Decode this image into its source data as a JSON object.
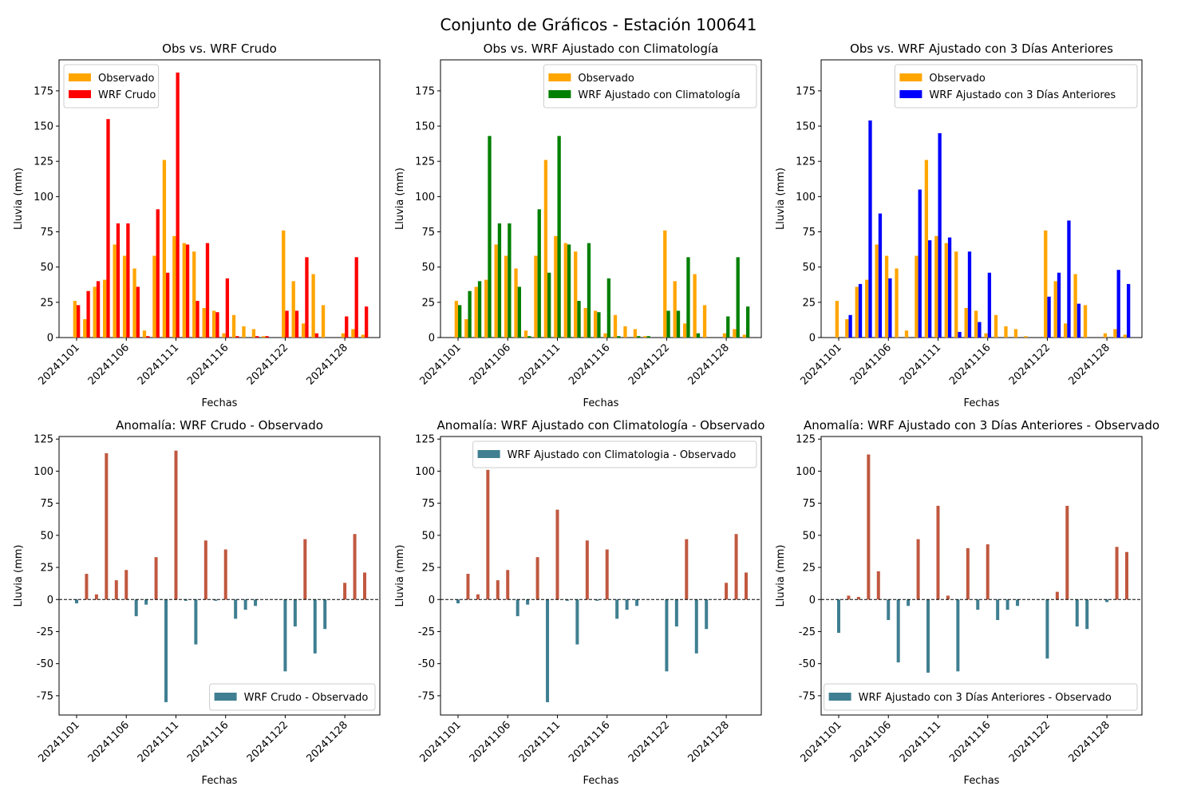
{
  "figure": {
    "title": "Conjunto de Gráficos - Estación 100641",
    "colors": {
      "observed": "#FFA500",
      "wrf_raw": "#FF0000",
      "wrf_clim": "#008000",
      "wrf_3d": "#0000FF",
      "anomaly_positive": "#C0583F",
      "anomaly_negative": "#3F7F91"
    }
  },
  "chart_data": [
    {
      "type": "bar",
      "title": "Obs vs. WRF Crudo",
      "xlabel": "Fechas",
      "ylabel": "Lluvia (mm)",
      "ylim": [
        0,
        197
      ],
      "yticks": [
        0,
        25,
        50,
        75,
        100,
        125,
        150,
        175
      ],
      "legend_position": "upper left",
      "xtick_labels": [
        "20241101",
        "20241106",
        "20241111",
        "20241116",
        "20241122",
        "20241128"
      ],
      "categories": [
        "20241101",
        "20241102",
        "20241103",
        "20241104",
        "20241105",
        "20241106",
        "20241107",
        "20241108",
        "20241109",
        "20241110",
        "20241111",
        "20241112",
        "20241113",
        "20241114",
        "20241115",
        "20241116",
        "20241117",
        "20241118",
        "20241119",
        "20241120",
        "20241121",
        "20241122",
        "20241123",
        "20241124",
        "20241125",
        "20241126",
        "20241127",
        "20241128",
        "20241129",
        "20241130"
      ],
      "series": [
        {
          "name": "Observado",
          "color": "#FFA500",
          "values": [
            26,
            13,
            36,
            41,
            66,
            58,
            49,
            5,
            58,
            126,
            72,
            67,
            61,
            21,
            19,
            3,
            16,
            8,
            6,
            1,
            0,
            76,
            40,
            10,
            45,
            23,
            0,
            3,
            6,
            2
          ]
        },
        {
          "name": "WRF Crudo",
          "color": "#FF0000",
          "values": [
            23,
            33,
            40,
            155,
            81,
            81,
            36,
            1,
            91,
            46,
            188,
            66,
            26,
            67,
            18,
            42,
            1,
            0,
            1,
            1,
            0,
            19,
            19,
            57,
            3,
            0,
            0,
            15,
            57,
            22
          ]
        }
      ]
    },
    {
      "type": "bar",
      "title": "Obs vs. WRF Ajustado con Climatología",
      "xlabel": "Fechas",
      "ylabel": "Lluvia (mm)",
      "ylim": [
        0,
        197
      ],
      "yticks": [
        0,
        25,
        50,
        75,
        100,
        125,
        150,
        175
      ],
      "legend_position": "upper right",
      "xtick_labels": [
        "20241101",
        "20241106",
        "20241111",
        "20241116",
        "20241122",
        "20241128"
      ],
      "categories": [
        "20241101",
        "20241102",
        "20241103",
        "20241104",
        "20241105",
        "20241106",
        "20241107",
        "20241108",
        "20241109",
        "20241110",
        "20241111",
        "20241112",
        "20241113",
        "20241114",
        "20241115",
        "20241116",
        "20241117",
        "20241118",
        "20241119",
        "20241120",
        "20241121",
        "20241122",
        "20241123",
        "20241124",
        "20241125",
        "20241126",
        "20241127",
        "20241128",
        "20241129",
        "20241130"
      ],
      "series": [
        {
          "name": "Observado",
          "color": "#FFA500",
          "values": [
            26,
            13,
            36,
            41,
            66,
            58,
            49,
            5,
            58,
            126,
            72,
            67,
            61,
            21,
            19,
            3,
            16,
            8,
            6,
            1,
            0,
            76,
            40,
            10,
            45,
            23,
            0,
            3,
            6,
            2
          ]
        },
        {
          "name": "WRF Ajustado con Climatología",
          "color": "#008000",
          "values": [
            23,
            33,
            40,
            143,
            81,
            81,
            36,
            1,
            91,
            46,
            143,
            66,
            26,
            67,
            18,
            42,
            1,
            0,
            1,
            1,
            0,
            19,
            19,
            57,
            3,
            0,
            0,
            15,
            57,
            22
          ]
        }
      ]
    },
    {
      "type": "bar",
      "title": "Obs vs. WRF Ajustado con 3 Días Anteriores",
      "xlabel": "Fechas",
      "ylabel": "Lluvia (mm)",
      "ylim": [
        0,
        197
      ],
      "yticks": [
        0,
        25,
        50,
        75,
        100,
        125,
        150,
        175
      ],
      "legend_position": "upper right",
      "xtick_labels": [
        "20241101",
        "20241106",
        "20241111",
        "20241116",
        "20241122",
        "20241128"
      ],
      "categories": [
        "20241101",
        "20241102",
        "20241103",
        "20241104",
        "20241105",
        "20241106",
        "20241107",
        "20241108",
        "20241109",
        "20241110",
        "20241111",
        "20241112",
        "20241113",
        "20241114",
        "20241115",
        "20241116",
        "20241117",
        "20241118",
        "20241119",
        "20241120",
        "20241121",
        "20241122",
        "20241123",
        "20241124",
        "20241125",
        "20241126",
        "20241127",
        "20241128",
        "20241129",
        "20241130"
      ],
      "series": [
        {
          "name": "Observado",
          "color": "#FFA500",
          "values": [
            26,
            13,
            36,
            41,
            66,
            58,
            49,
            5,
            58,
            126,
            72,
            67,
            61,
            21,
            19,
            3,
            16,
            8,
            6,
            1,
            0,
            76,
            40,
            10,
            45,
            23,
            0,
            3,
            6,
            2
          ]
        },
        {
          "name": "WRF Ajustado con 3 Días Anteriores",
          "color": "#0000FF",
          "values": [
            0,
            16,
            38,
            154,
            88,
            42,
            0,
            0,
            105,
            69,
            145,
            71,
            4,
            61,
            11,
            46,
            0,
            0,
            0,
            0,
            0,
            29,
            46,
            83,
            24,
            0,
            0,
            0,
            48,
            38
          ]
        }
      ]
    },
    {
      "type": "bar",
      "title": "Anomalía: WRF Crudo - Observado",
      "xlabel": "Fechas",
      "ylabel": "Lluvia (mm)",
      "ylim": [
        -90,
        127
      ],
      "yticks": [
        -75,
        -50,
        -25,
        0,
        25,
        50,
        75,
        100,
        125
      ],
      "legend_position": "lower right",
      "zero_line": true,
      "xtick_labels": [
        "20241101",
        "20241106",
        "20241111",
        "20241116",
        "20241122",
        "20241128"
      ],
      "categories": [
        "20241101",
        "20241102",
        "20241103",
        "20241104",
        "20241105",
        "20241106",
        "20241107",
        "20241108",
        "20241109",
        "20241110",
        "20241111",
        "20241112",
        "20241113",
        "20241114",
        "20241115",
        "20241116",
        "20241117",
        "20241118",
        "20241119",
        "20241120",
        "20241121",
        "20241122",
        "20241123",
        "20241124",
        "20241125",
        "20241126",
        "20241127",
        "20241128",
        "20241129",
        "20241130"
      ],
      "series": [
        {
          "name": "WRF Crudo - Observado",
          "values": [
            -3,
            20,
            4,
            114,
            15,
            23,
            -13,
            -4,
            33,
            -80,
            116,
            -1,
            -35,
            46,
            -1,
            39,
            -15,
            -8,
            -5,
            0,
            0,
            -56,
            -21,
            47,
            -42,
            -23,
            0,
            13,
            51,
            21
          ]
        }
      ]
    },
    {
      "type": "bar",
      "title": "Anomalía: WRF Ajustado con Climatología - Observado",
      "xlabel": "Fechas",
      "ylabel": "Lluvia (mm)",
      "ylim": [
        -90,
        127
      ],
      "yticks": [
        -75,
        -50,
        -25,
        0,
        25,
        50,
        75,
        100,
        125
      ],
      "legend_position": "upper right",
      "zero_line": true,
      "xtick_labels": [
        "20241101",
        "20241106",
        "20241111",
        "20241116",
        "20241122",
        "20241128"
      ],
      "categories": [
        "20241101",
        "20241102",
        "20241103",
        "20241104",
        "20241105",
        "20241106",
        "20241107",
        "20241108",
        "20241109",
        "20241110",
        "20241111",
        "20241112",
        "20241113",
        "20241114",
        "20241115",
        "20241116",
        "20241117",
        "20241118",
        "20241119",
        "20241120",
        "20241121",
        "20241122",
        "20241123",
        "20241124",
        "20241125",
        "20241126",
        "20241127",
        "20241128",
        "20241129",
        "20241130"
      ],
      "series": [
        {
          "name": "WRF Ajustado con Climatologia - Observado",
          "values": [
            -3,
            20,
            4,
            101,
            15,
            23,
            -13,
            -4,
            33,
            -80,
            70,
            -1,
            -35,
            46,
            -1,
            39,
            -15,
            -8,
            -5,
            0,
            0,
            -56,
            -21,
            47,
            -42,
            -23,
            0,
            13,
            51,
            21
          ]
        }
      ]
    },
    {
      "type": "bar",
      "title": "Anomalía: WRF Ajustado con 3 Días Anteriores - Observado",
      "xlabel": "Fechas",
      "ylabel": "Lluvia (mm)",
      "ylim": [
        -90,
        127
      ],
      "yticks": [
        -75,
        -50,
        -25,
        0,
        25,
        50,
        75,
        100,
        125
      ],
      "legend_position": "lower right",
      "zero_line": true,
      "xtick_labels": [
        "20241101",
        "20241106",
        "20241111",
        "20241116",
        "20241122",
        "20241128"
      ],
      "categories": [
        "20241101",
        "20241102",
        "20241103",
        "20241104",
        "20241105",
        "20241106",
        "20241107",
        "20241108",
        "20241109",
        "20241110",
        "20241111",
        "20241112",
        "20241113",
        "20241114",
        "20241115",
        "20241116",
        "20241117",
        "20241118",
        "20241119",
        "20241120",
        "20241121",
        "20241122",
        "20241123",
        "20241124",
        "20241125",
        "20241126",
        "20241127",
        "20241128",
        "20241129",
        "20241130"
      ],
      "series": [
        {
          "name": "WRF Ajustado con 3 Días Anteriores - Observado",
          "values": [
            -26,
            3,
            2,
            113,
            22,
            -16,
            -49,
            -5,
            47,
            -57,
            73,
            3,
            -56,
            40,
            -8,
            43,
            -16,
            -8,
            -5,
            0,
            0,
            -46,
            6,
            73,
            -21,
            -23,
            0,
            -2,
            41,
            37
          ]
        }
      ]
    }
  ]
}
